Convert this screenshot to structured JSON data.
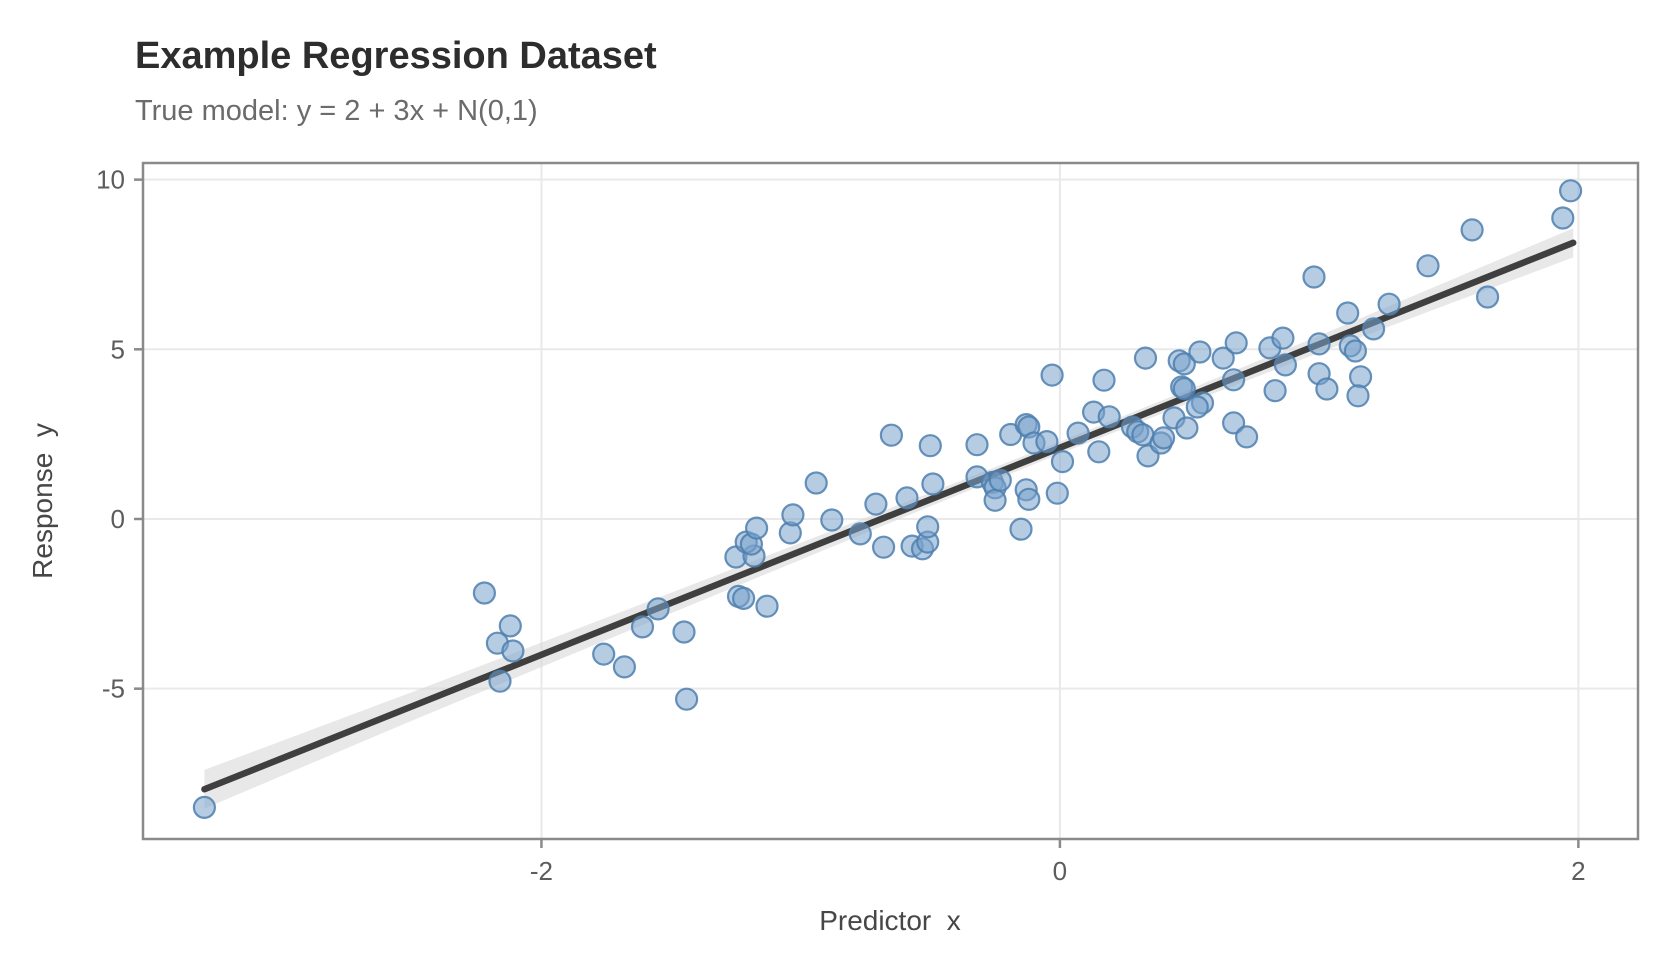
{
  "chart_data": {
    "type": "scatter",
    "title": "Example Regression Dataset",
    "subtitle": "True model: y = 2 + 3x + N(0,1)",
    "xlabel": "Predictor  x",
    "ylabel": "Response  y",
    "axes": {
      "x": {
        "min": -3.537,
        "max": 2.23,
        "tick_values": [
          -2,
          0,
          2
        ],
        "tick_labels": [
          "-2",
          "0",
          "2"
        ]
      },
      "y": {
        "min": -9.43,
        "max": 10.49,
        "tick_values": [
          -5,
          0,
          5,
          10
        ],
        "tick_labels": [
          "-5",
          "0",
          "5",
          "10"
        ]
      }
    },
    "grid": true,
    "legend": "none",
    "colors": {
      "point_fill": "#7aa3cc",
      "point_edge": "#4d7fae",
      "regression_line": "#3f3f3f",
      "confidence_band": "#d8d8d8",
      "gridline": "#e9e9e9",
      "panel_border": "#8a8a8a"
    },
    "regression_fit": {
      "intercept": 2.1,
      "slope": 3.05,
      "x_start": -3.3,
      "x_end": 1.98,
      "band_x": [
        -3.3,
        -2.5,
        -1.5,
        -0.5,
        0.0,
        0.5,
        1.0,
        1.5,
        1.98
      ],
      "band_halfwidth": [
        0.57,
        0.42,
        0.3,
        0.2,
        0.18,
        0.2,
        0.25,
        0.34,
        0.43
      ]
    },
    "points": [
      [
        -3.3,
        -8.5
      ],
      [
        -2.22,
        -2.18
      ],
      [
        -2.17,
        -3.66
      ],
      [
        -2.12,
        -3.15
      ],
      [
        -2.11,
        -3.89
      ],
      [
        -2.16,
        -4.78
      ],
      [
        -1.76,
        -3.98
      ],
      [
        -1.68,
        -4.36
      ],
      [
        -1.55,
        -2.65
      ],
      [
        -1.61,
        -3.18
      ],
      [
        -1.45,
        -3.33
      ],
      [
        -1.44,
        -5.31
      ],
      [
        -1.24,
        -2.28
      ],
      [
        -1.22,
        -2.34
      ],
      [
        -1.13,
        -2.57
      ],
      [
        -1.25,
        -1.12
      ],
      [
        -1.18,
        -1.09
      ],
      [
        -1.21,
        -0.68
      ],
      [
        -1.19,
        -0.74
      ],
      [
        -1.17,
        -0.27
      ],
      [
        -1.04,
        -0.41
      ],
      [
        -1.03,
        0.12
      ],
      [
        -0.94,
        1.06
      ],
      [
        -0.88,
        -0.03
      ],
      [
        -0.77,
        -0.44
      ],
      [
        -0.71,
        0.44
      ],
      [
        -0.68,
        -0.83
      ],
      [
        -0.65,
        2.47
      ],
      [
        -0.59,
        0.62
      ],
      [
        -0.57,
        -0.8
      ],
      [
        -0.53,
        -0.88
      ],
      [
        -0.51,
        -0.68
      ],
      [
        -0.51,
        -0.23
      ],
      [
        -0.5,
        2.16
      ],
      [
        -0.49,
        1.03
      ],
      [
        -0.32,
        2.19
      ],
      [
        -0.32,
        1.24
      ],
      [
        -0.26,
        1.08
      ],
      [
        -0.25,
        0.92
      ],
      [
        -0.25,
        0.55
      ],
      [
        -0.23,
        1.14
      ],
      [
        -0.19,
        2.49
      ],
      [
        -0.15,
        -0.3
      ],
      [
        -0.13,
        2.78
      ],
      [
        -0.12,
        2.71
      ],
      [
        -0.13,
        0.86
      ],
      [
        -0.12,
        0.58
      ],
      [
        -0.1,
        2.24
      ],
      [
        -0.05,
        2.28
      ],
      [
        -0.03,
        4.24
      ],
      [
        -0.01,
        0.76
      ],
      [
        0.01,
        1.69
      ],
      [
        0.07,
        2.53
      ],
      [
        0.13,
        3.15
      ],
      [
        0.15,
        1.98
      ],
      [
        0.17,
        4.09
      ],
      [
        0.19,
        3.01
      ],
      [
        0.28,
        2.71
      ],
      [
        0.3,
        2.57
      ],
      [
        0.32,
        2.48
      ],
      [
        0.33,
        4.74
      ],
      [
        0.34,
        1.86
      ],
      [
        0.39,
        2.24
      ],
      [
        0.4,
        2.39
      ],
      [
        0.44,
        2.98
      ],
      [
        0.46,
        4.66
      ],
      [
        0.48,
        4.57
      ],
      [
        0.47,
        3.89
      ],
      [
        0.48,
        3.84
      ],
      [
        0.49,
        2.68
      ],
      [
        0.54,
        4.92
      ],
      [
        0.55,
        3.42
      ],
      [
        0.53,
        3.3
      ],
      [
        0.63,
        4.74
      ],
      [
        0.68,
        5.19
      ],
      [
        0.67,
        4.1
      ],
      [
        0.67,
        2.83
      ],
      [
        0.72,
        2.42
      ],
      [
        0.81,
        5.04
      ],
      [
        0.86,
        5.33
      ],
      [
        0.83,
        3.78
      ],
      [
        0.87,
        4.54
      ],
      [
        0.98,
        7.13
      ],
      [
        1.0,
        5.16
      ],
      [
        1.0,
        4.28
      ],
      [
        1.03,
        3.83
      ],
      [
        1.11,
        6.07
      ],
      [
        1.12,
        5.1
      ],
      [
        1.14,
        4.95
      ],
      [
        1.21,
        5.6
      ],
      [
        1.16,
        4.19
      ],
      [
        1.15,
        3.63
      ],
      [
        1.27,
        6.33
      ],
      [
        1.42,
        7.46
      ],
      [
        1.59,
        8.52
      ],
      [
        1.65,
        6.54
      ],
      [
        1.94,
        8.87
      ],
      [
        1.97,
        9.67
      ]
    ]
  }
}
